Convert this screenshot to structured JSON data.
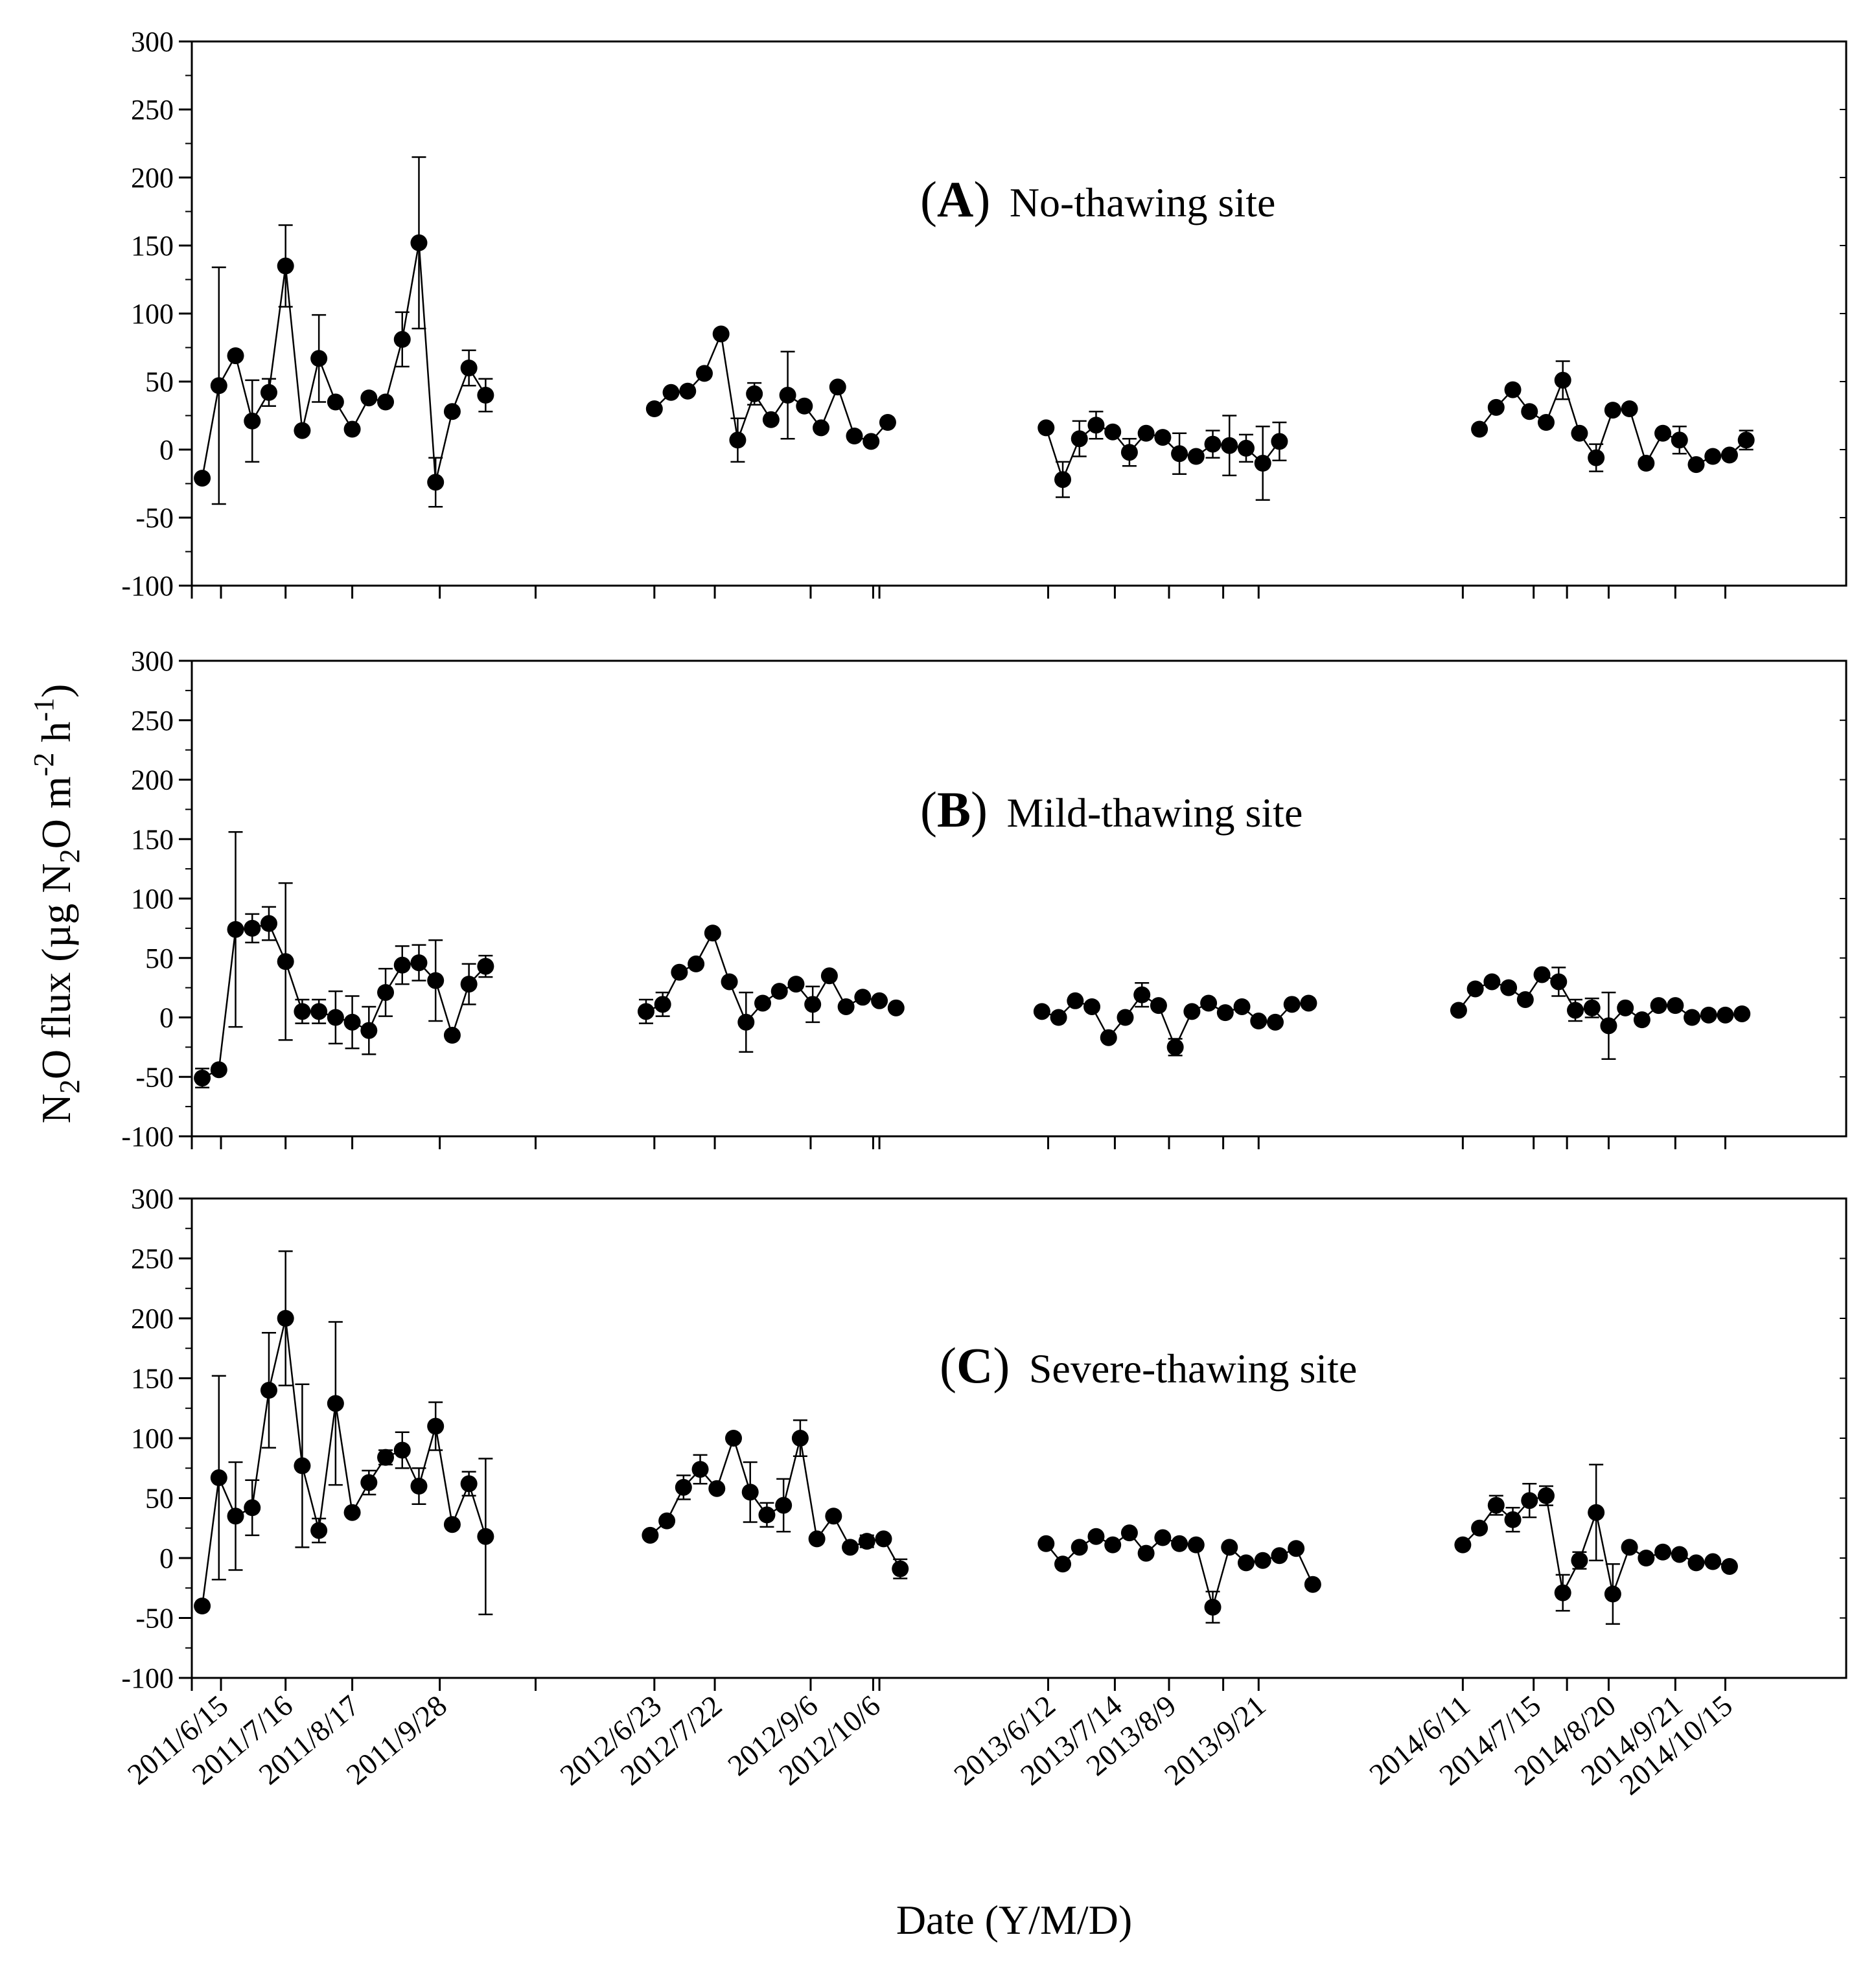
{
  "colors": {
    "marker": "#000000",
    "line": "#000000",
    "frame": "#000000",
    "background": "#ffffff"
  },
  "chart_data": {
    "type": "scatter",
    "y_label_parts": [
      "N",
      "2",
      "O flux (µg N",
      "2",
      "O m",
      "-2",
      " h",
      "-1",
      ")"
    ],
    "xlabel": "Date (Y/M/D)",
    "ylim": [
      -100,
      300
    ],
    "yticks": [
      -100,
      -50,
      0,
      50,
      100,
      150,
      200,
      250,
      300
    ],
    "x_unit": "days since 2011-06-01 (years concatenated, gap between seasons)",
    "x_range": [
      0,
      794
    ],
    "x_tick_labels": [
      {
        "label": "2011/6/15",
        "x": 14
      },
      {
        "label": "2011/7/16",
        "x": 45
      },
      {
        "label": "2011/8/17",
        "x": 77
      },
      {
        "label": "2011/9/28",
        "x": 119
      },
      {
        "label": "2012/6/23",
        "x": 222
      },
      {
        "label": "2012/7/22",
        "x": 251
      },
      {
        "label": "2012/9/6",
        "x": 297
      },
      {
        "label": "2012/10/6",
        "x": 327
      },
      {
        "label": "2013/6/12",
        "x": 411
      },
      {
        "label": "2013/7/14",
        "x": 443
      },
      {
        "label": "2013/8/9",
        "x": 469
      },
      {
        "label": "2013/9/21",
        "x": 512
      },
      {
        "label": "2014/6/11",
        "x": 610
      },
      {
        "label": "2014/7/15",
        "x": 644
      },
      {
        "label": "2014/8/20",
        "x": 680
      },
      {
        "label": "2014/9/21",
        "x": 712
      },
      {
        "label": "2014/10/15",
        "x": 736
      }
    ],
    "x_minor_ticks": [
      0,
      165,
      330,
      495,
      660
    ],
    "panels": [
      {
        "letter": "A",
        "title": "No-thawing site",
        "series": [
          {
            "x": [
              5,
              13,
              21,
              29,
              37,
              45,
              53,
              61,
              69,
              77,
              85,
              93,
              101,
              109,
              117,
              125,
              133,
              141
            ],
            "y": [
              -21,
              47,
              69,
              21,
              42,
              135,
              14,
              67,
              35,
              15,
              38,
              35,
              81,
              152,
              -24,
              28,
              60,
              40
            ],
            "err": [
              0,
              87,
              0,
              30,
              10,
              30,
              0,
              32,
              0,
              0,
              0,
              0,
              20,
              63,
              18,
              0,
              13,
              12
            ]
          },
          {
            "x": [
              222,
              230,
              238,
              246,
              254,
              262,
              270,
              278,
              286,
              294,
              302,
              310,
              318,
              326,
              334
            ],
            "y": [
              30,
              42,
              43,
              56,
              85,
              7,
              41,
              22,
              40,
              32,
              16,
              46,
              10,
              6,
              20
            ],
            "err": [
              0,
              0,
              0,
              0,
              0,
              16,
              8,
              0,
              32,
              0,
              0,
              0,
              0,
              0,
              0
            ]
          },
          {
            "x": [
              410,
              418,
              426,
              434,
              442,
              450,
              458,
              466,
              474,
              482,
              490,
              498,
              506,
              514,
              522
            ],
            "y": [
              16,
              -22,
              8,
              18,
              13,
              -2,
              12,
              9,
              -3,
              -5,
              4,
              3,
              1,
              -10,
              6
            ],
            "err": [
              0,
              13,
              13,
              10,
              0,
              10,
              0,
              0,
              15,
              0,
              10,
              22,
              10,
              27,
              14
            ]
          },
          {
            "x": [
              618,
              626,
              634,
              642,
              650,
              658,
              666,
              674,
              682,
              690,
              698,
              706,
              714,
              722,
              730
            ],
            "y": [
              15,
              31,
              44,
              28,
              20,
              51,
              12,
              -6,
              29,
              30,
              -10,
              12,
              7,
              -11,
              -5
            ],
            "err": [
              0,
              0,
              0,
              0,
              0,
              14,
              0,
              10,
              0,
              0,
              0,
              0,
              10,
              0,
              0
            ]
          },
          {
            "x": [
              738,
              746
            ],
            "y": [
              -4,
              7
            ],
            "err": [
              0,
              7
            ]
          }
        ]
      },
      {
        "letter": "B",
        "title": "Mild-thawing site",
        "series": [
          {
            "x": [
              5,
              13,
              21,
              29,
              37,
              45,
              53,
              61,
              69,
              77,
              85,
              93,
              101,
              109,
              117,
              125,
              133,
              141
            ],
            "y": [
              -51,
              -44,
              74,
              75,
              79,
              47,
              5,
              5,
              0,
              -4,
              -11,
              21,
              44,
              46,
              31,
              -15,
              28,
              43
            ],
            "err": [
              8,
              0,
              82,
              12,
              14,
              66,
              10,
              10,
              22,
              22,
              20,
              20,
              16,
              15,
              34,
              0,
              17,
              9
            ]
          },
          {
            "x": [
              218,
              226,
              234,
              242,
              250,
              258,
              266,
              274,
              282,
              290,
              298,
              306,
              314,
              322,
              330
            ],
            "y": [
              5,
              11,
              38,
              45,
              71,
              30,
              -4,
              12,
              22,
              28,
              11,
              35,
              9,
              17,
              14
            ],
            "err": [
              10,
              10,
              0,
              0,
              0,
              0,
              25,
              0,
              0,
              0,
              15,
              0,
              0,
              0,
              0
            ]
          },
          {
            "x": [
              338
            ],
            "y": [
              8
            ],
            "err": [
              0
            ]
          },
          {
            "x": [
              408,
              416,
              424,
              432,
              440,
              448,
              456,
              464,
              472,
              480,
              488,
              496,
              504,
              512,
              520,
              528
            ],
            "y": [
              5,
              0,
              14,
              9,
              -17,
              0,
              19,
              10,
              -25,
              5,
              12,
              4,
              9,
              -3,
              -4,
              11
            ],
            "err": [
              0,
              0,
              0,
              0,
              0,
              0,
              10,
              0,
              7,
              0,
              0,
              0,
              0,
              0,
              0,
              0
            ]
          },
          {
            "x": [
              536
            ],
            "y": [
              12
            ],
            "err": [
              0
            ]
          },
          {
            "x": [
              608,
              616,
              624,
              632,
              640,
              648,
              656,
              664,
              672,
              680,
              688,
              696,
              704,
              712,
              720,
              728,
              736,
              744
            ],
            "y": [
              6,
              24,
              30,
              25,
              15,
              36,
              30,
              6,
              8,
              -7,
              8,
              -2,
              10,
              10,
              0,
              2,
              2,
              3
            ],
            "err": [
              0,
              0,
              0,
              0,
              0,
              0,
              12,
              9,
              8,
              28,
              0,
              0,
              0,
              0,
              0,
              0,
              0,
              0
            ]
          }
        ]
      },
      {
        "letter": "C",
        "title": "Severe-thawing site",
        "series": [
          {
            "x": [
              5,
              13,
              21,
              29,
              37,
              45,
              53,
              61,
              69,
              77,
              85,
              93,
              101,
              109,
              117,
              125,
              133,
              141
            ],
            "y": [
              -40,
              67,
              35,
              42,
              140,
              200,
              77,
              23,
              129,
              38,
              63,
              84,
              90,
              60,
              110,
              28,
              62,
              18
            ],
            "err": [
              0,
              85,
              45,
              23,
              48,
              56,
              68,
              10,
              68,
              0,
              10,
              6,
              15,
              15,
              20,
              0,
              10,
              65
            ]
          },
          {
            "x": [
              220,
              228,
              236,
              244,
              252,
              260,
              268,
              276,
              284,
              292,
              300,
              308,
              316,
              324,
              332,
              340
            ],
            "y": [
              19,
              31,
              59,
              74,
              58,
              100,
              55,
              36,
              44,
              100,
              16,
              35,
              9,
              14,
              16,
              -9
            ],
            "err": [
              0,
              0,
              10,
              12,
              0,
              0,
              25,
              10,
              22,
              15,
              0,
              0,
              0,
              5,
              0,
              8
            ]
          },
          {
            "x": [
              410,
              418,
              426,
              434,
              442,
              450,
              458,
              466,
              474,
              482,
              490,
              498,
              506,
              514,
              522,
              530,
              538
            ],
            "y": [
              12,
              -5,
              9,
              18,
              11,
              21,
              4,
              17,
              12,
              11,
              -41,
              9,
              -4,
              -2,
              2,
              8,
              -22
            ],
            "err": [
              0,
              0,
              0,
              0,
              0,
              0,
              0,
              0,
              0,
              0,
              13,
              0,
              0,
              0,
              0,
              0,
              0
            ]
          },
          {
            "x": [
              610,
              618,
              626,
              634,
              642,
              650,
              658,
              666,
              674,
              682,
              690,
              698,
              706,
              714,
              722,
              730,
              738
            ],
            "y": [
              11,
              25,
              44,
              32,
              48,
              52,
              -29,
              -2,
              38,
              -30,
              9,
              0,
              5,
              3,
              -4,
              -3,
              -7
            ],
            "err": [
              0,
              0,
              8,
              10,
              14,
              8,
              15,
              7,
              40,
              25,
              0,
              0,
              0,
              0,
              0,
              0,
              0
            ]
          }
        ]
      }
    ]
  }
}
